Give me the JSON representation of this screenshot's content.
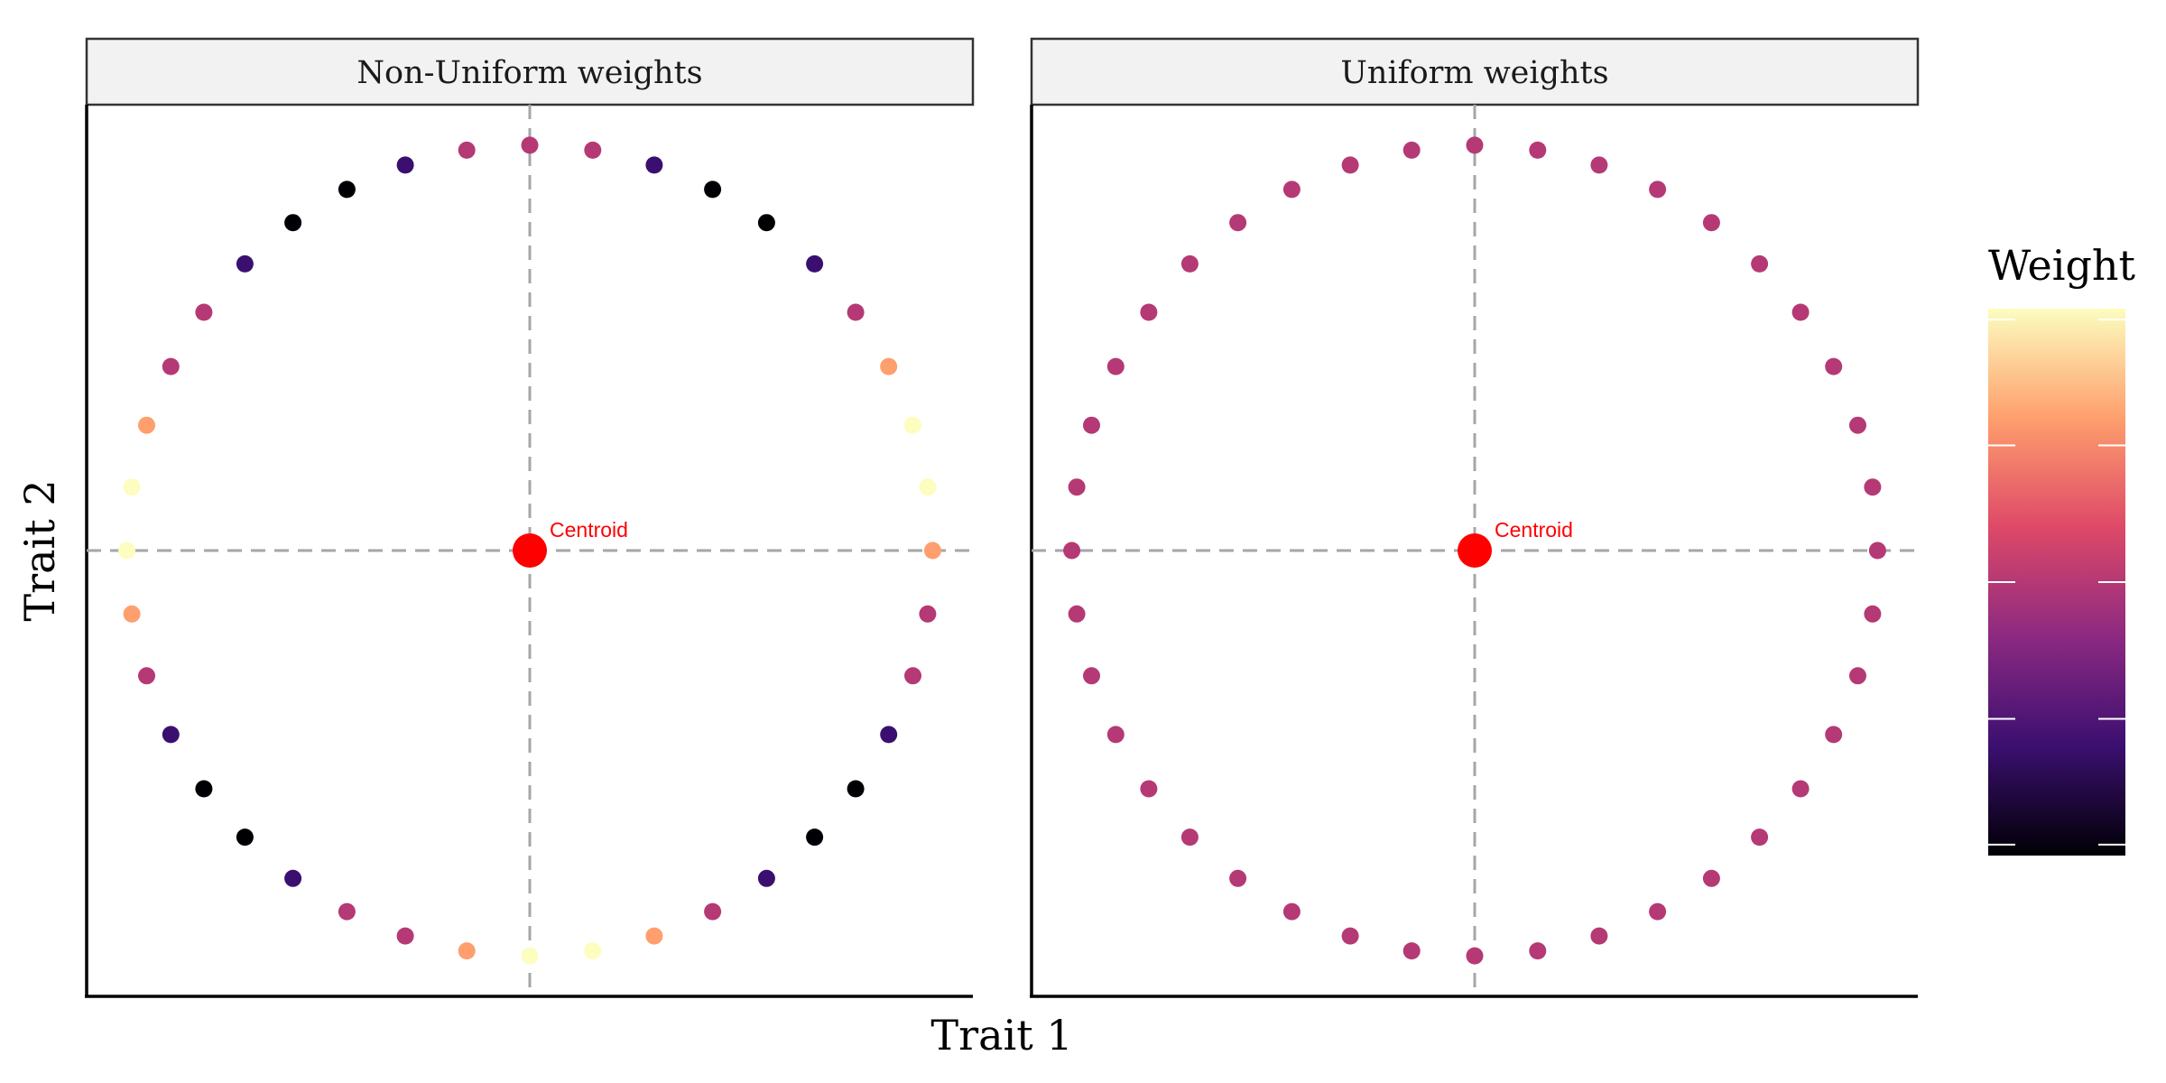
{
  "chart_data": {
    "type": "scatter",
    "xlabel": "Trait 1",
    "ylabel": "Trait 2",
    "xlim": [
      -1.1,
      1.1
    ],
    "ylim": [
      -1.1,
      1.1
    ],
    "grid": false,
    "legend": {
      "title": "Weight",
      "placement": "right",
      "type": "colorbar",
      "colormap": "magma",
      "colors": [
        "#000004",
        "#3b0f70",
        "#8c2981",
        "#de4968",
        "#fe9f6d",
        "#fcfdbf"
      ]
    },
    "reference_lines": {
      "x": 0,
      "y": 0,
      "style": "dashed",
      "color": "#a6a6a6"
    },
    "panels": [
      {
        "strip_label": "Non-Uniform weights",
        "centroid": {
          "x": 0,
          "y": 0,
          "label": "Centroid",
          "color": "#ff0000"
        },
        "point_count": 40,
        "radius": 1,
        "weights": [
          0.5,
          0.5,
          0.2,
          0.0,
          0.0,
          0.2,
          0.5,
          0.8,
          1.0,
          1.0,
          0.8,
          0.5,
          0.5,
          0.2,
          0.0,
          0.0,
          0.2,
          0.5,
          0.8,
          1.0,
          1.0,
          0.8,
          0.5,
          0.5,
          0.2,
          0.0,
          0.0,
          0.2,
          0.5,
          0.8,
          1.0,
          1.0,
          0.8,
          0.5,
          0.5,
          0.2,
          0.0,
          0.0,
          0.2,
          0.5
        ]
      },
      {
        "strip_label": "Uniform weights",
        "centroid": {
          "x": 0,
          "y": 0,
          "label": "Centroid",
          "color": "#ff0000"
        },
        "point_count": 40,
        "radius": 1,
        "weights": [
          0.5,
          0.5,
          0.5,
          0.5,
          0.5,
          0.5,
          0.5,
          0.5,
          0.5,
          0.5,
          0.5,
          0.5,
          0.5,
          0.5,
          0.5,
          0.5,
          0.5,
          0.5,
          0.5,
          0.5,
          0.5,
          0.5,
          0.5,
          0.5,
          0.5,
          0.5,
          0.5,
          0.5,
          0.5,
          0.5,
          0.5,
          0.5,
          0.5,
          0.5,
          0.5,
          0.5,
          0.5,
          0.5,
          0.5,
          0.5
        ]
      }
    ]
  }
}
